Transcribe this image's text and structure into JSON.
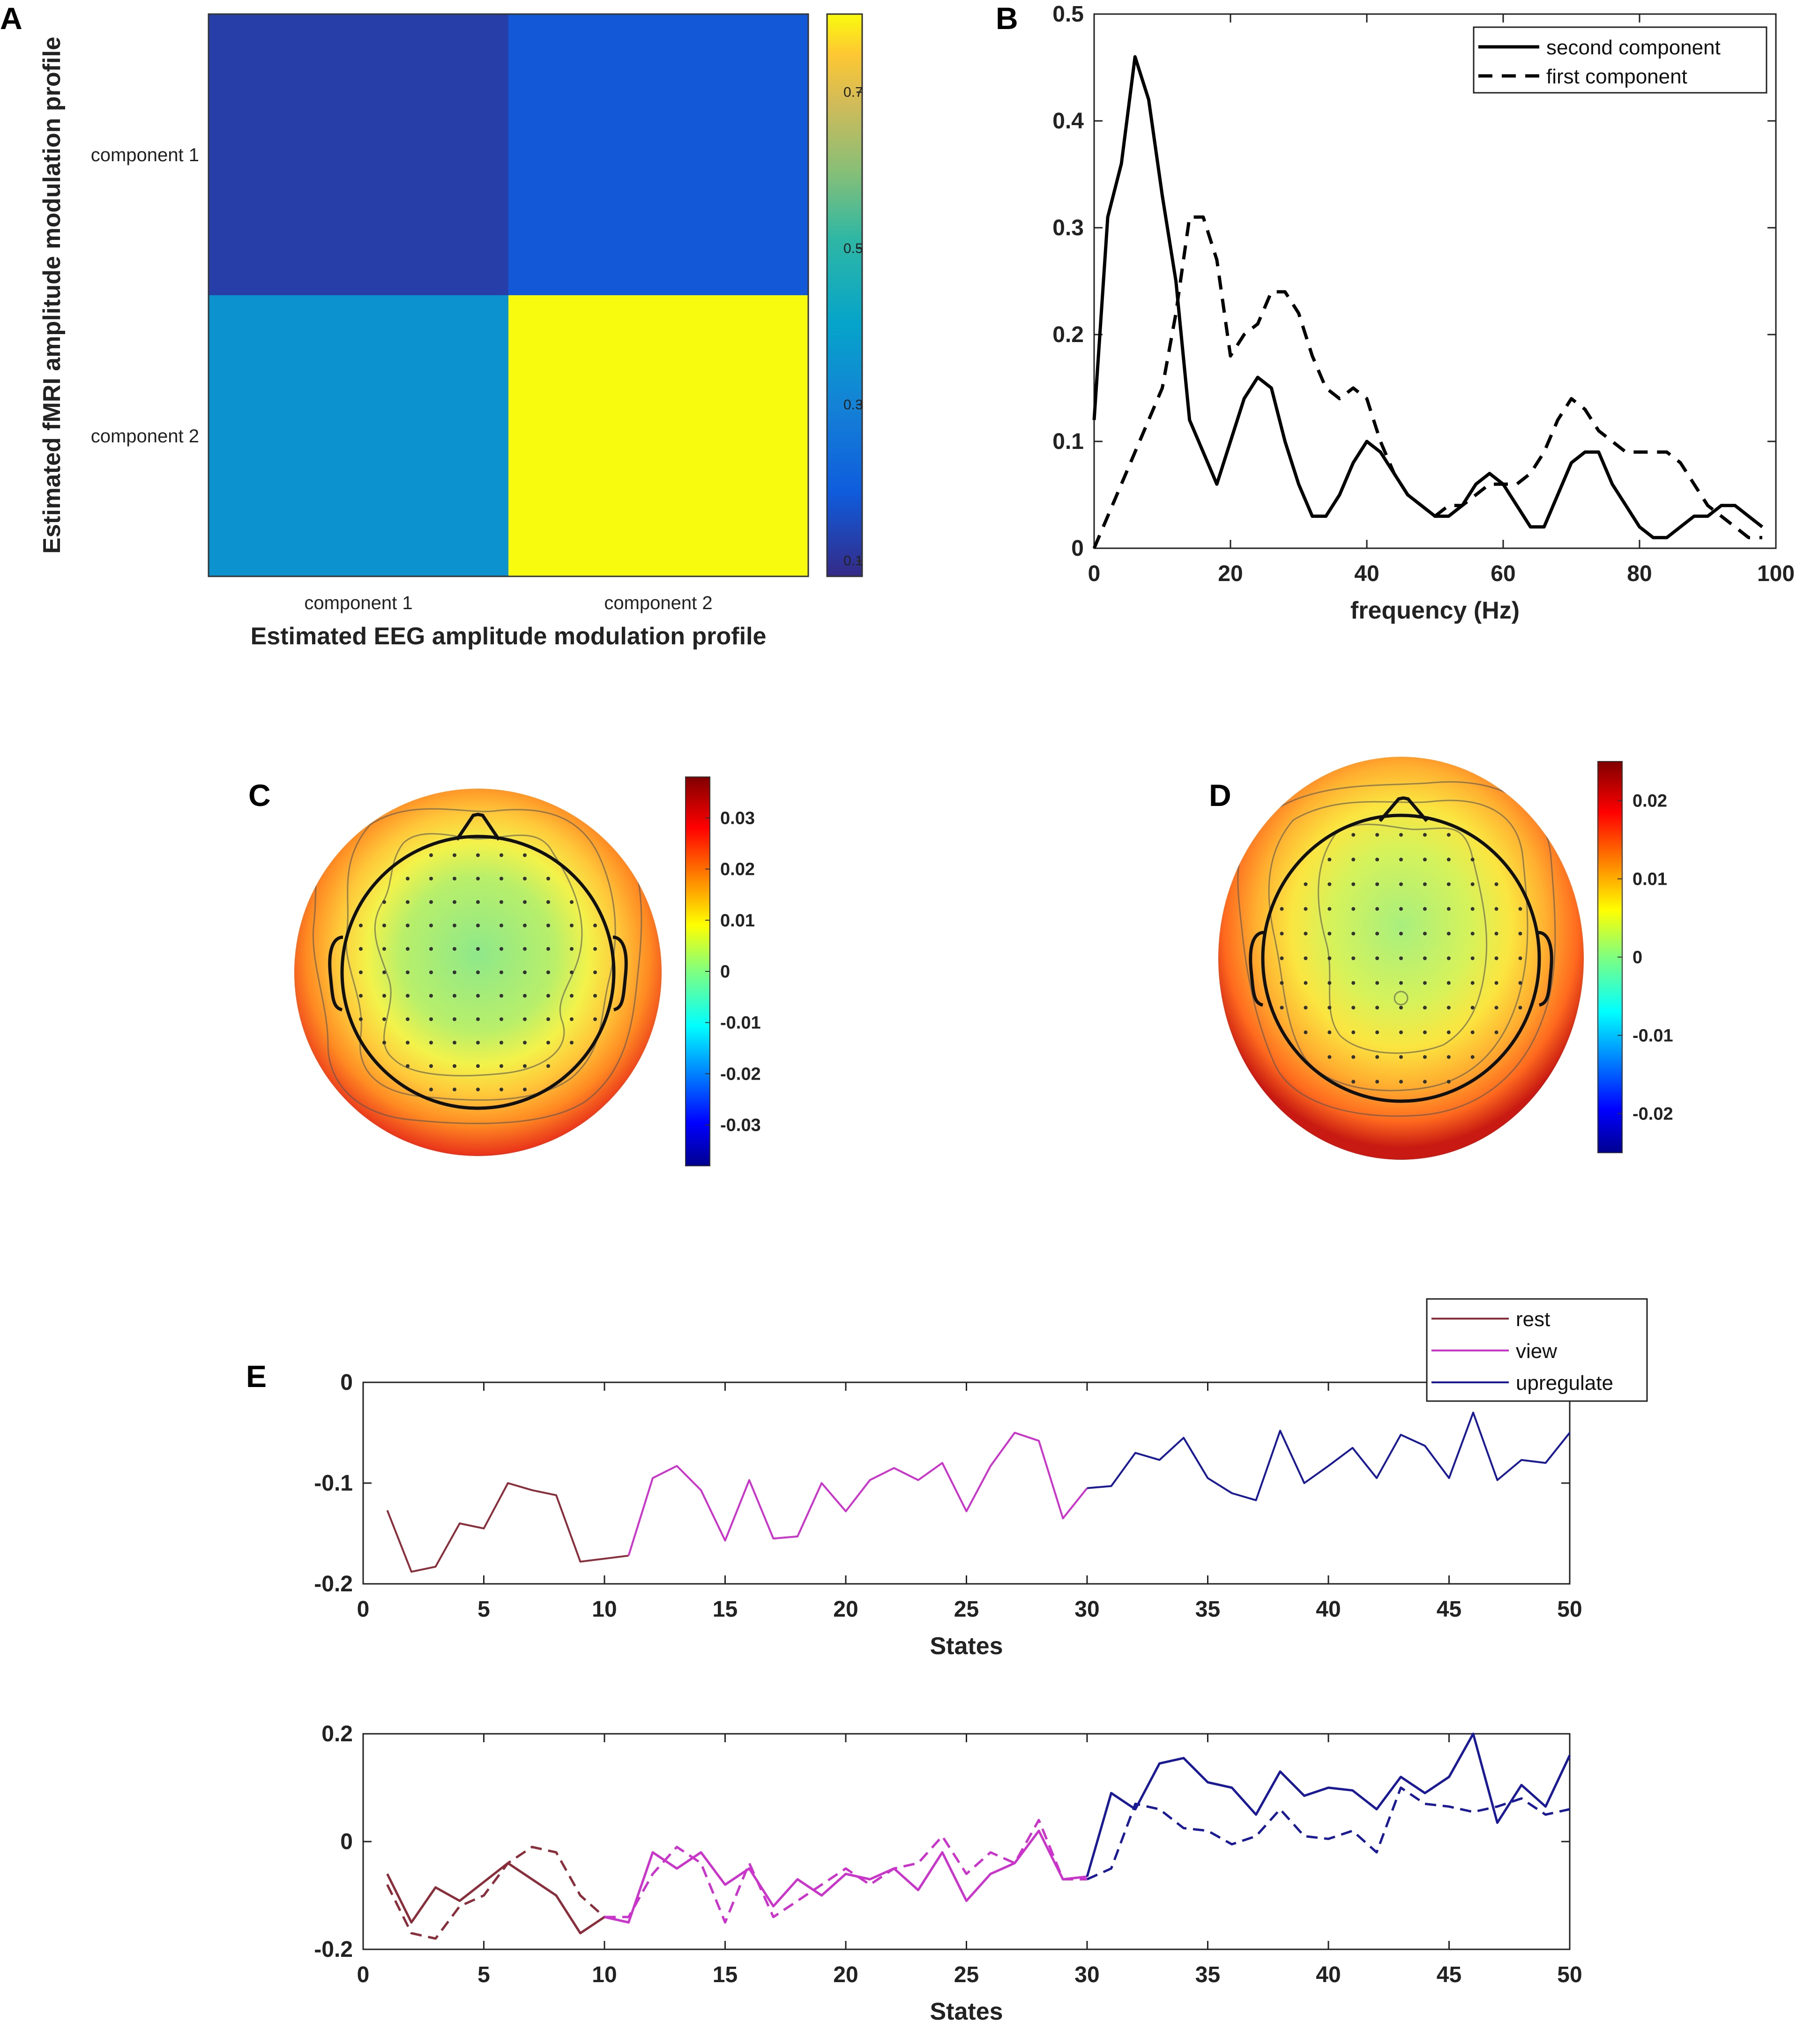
{
  "panels": {
    "A": "A",
    "B": "B",
    "C": "C",
    "D": "D",
    "E": "E"
  },
  "chart_data": [
    {
      "id": "A",
      "type": "heatmap",
      "title": "",
      "xlabel": "Estimated EEG amplitude modulation profile",
      "ylabel": "Estimated fMRI amplitude modulation profile",
      "x_categories": [
        "component 1",
        "component 2"
      ],
      "y_categories": [
        "component 1",
        "component 2"
      ],
      "values": [
        [
          0.12,
          0.18
        ],
        [
          0.35,
          0.8
        ]
      ],
      "colorbar": {
        "range": [
          0.08,
          0.8
        ],
        "ticks": [
          0.1,
          0.3,
          0.5,
          0.7
        ],
        "tick_labels": [
          "0.1",
          "0.3",
          "0.5",
          "0.7"
        ]
      }
    },
    {
      "id": "B",
      "type": "line",
      "xlabel": "frequency (Hz)",
      "ylabel": "",
      "xlim": [
        0,
        100
      ],
      "ylim": [
        0,
        0.5
      ],
      "xticks": [
        0,
        20,
        40,
        60,
        80,
        100
      ],
      "xtick_labels": [
        "0",
        "20",
        "40",
        "60",
        "80",
        "100"
      ],
      "yticks": [
        0,
        0.1,
        0.2,
        0.3,
        0.4,
        0.5
      ],
      "ytick_labels": [
        "0",
        "0.1",
        "0.2",
        "0.3",
        "0.4",
        "0.5"
      ],
      "legend_position": "top-right",
      "series": [
        {
          "name": "second component",
          "style": "solid",
          "x": [
            0,
            2,
            4,
            6,
            8,
            10,
            12,
            14,
            16,
            18,
            20,
            22,
            24,
            26,
            28,
            30,
            32,
            34,
            36,
            38,
            40,
            42,
            44,
            46,
            48,
            50,
            52,
            54,
            56,
            58,
            60,
            62,
            64,
            66,
            68,
            70,
            72,
            74,
            76,
            78,
            80,
            82,
            84,
            86,
            88,
            90,
            92,
            94,
            96,
            98
          ],
          "y": [
            0.12,
            0.31,
            0.36,
            0.46,
            0.42,
            0.33,
            0.25,
            0.12,
            0.09,
            0.06,
            0.1,
            0.14,
            0.16,
            0.15,
            0.1,
            0.06,
            0.03,
            0.03,
            0.05,
            0.08,
            0.1,
            0.09,
            0.07,
            0.05,
            0.04,
            0.03,
            0.03,
            0.04,
            0.06,
            0.07,
            0.06,
            0.04,
            0.02,
            0.02,
            0.05,
            0.08,
            0.09,
            0.09,
            0.06,
            0.04,
            0.02,
            0.01,
            0.01,
            0.02,
            0.03,
            0.03,
            0.04,
            0.04,
            0.03,
            0.02
          ]
        },
        {
          "name": "first component",
          "style": "dashed",
          "x": [
            0,
            2,
            4,
            6,
            8,
            10,
            12,
            14,
            16,
            18,
            20,
            22,
            24,
            26,
            28,
            30,
            32,
            34,
            36,
            38,
            40,
            42,
            44,
            46,
            48,
            50,
            52,
            54,
            56,
            58,
            60,
            62,
            64,
            66,
            68,
            70,
            72,
            74,
            76,
            78,
            80,
            82,
            84,
            86,
            88,
            90,
            92,
            94,
            96,
            98
          ],
          "y": [
            0.0,
            0.03,
            0.06,
            0.09,
            0.12,
            0.15,
            0.22,
            0.31,
            0.31,
            0.27,
            0.18,
            0.2,
            0.21,
            0.24,
            0.24,
            0.22,
            0.18,
            0.15,
            0.14,
            0.15,
            0.14,
            0.1,
            0.07,
            0.05,
            0.04,
            0.03,
            0.04,
            0.04,
            0.05,
            0.06,
            0.06,
            0.06,
            0.07,
            0.09,
            0.12,
            0.14,
            0.13,
            0.11,
            0.1,
            0.09,
            0.09,
            0.09,
            0.09,
            0.08,
            0.06,
            0.04,
            0.03,
            0.02,
            0.01,
            0.01
          ]
        }
      ]
    },
    {
      "id": "C",
      "type": "heatmap",
      "subtype": "topographic-scalp-map",
      "colorbar": {
        "range": [
          -0.038,
          0.038
        ],
        "ticks": [
          0.03,
          0.02,
          0.01,
          0,
          -0.01,
          -0.02,
          -0.03
        ],
        "tick_labels": [
          "0.03",
          "0.02",
          "0.01",
          "0",
          "-0.01",
          "-0.02",
          "-0.03"
        ]
      }
    },
    {
      "id": "D",
      "type": "heatmap",
      "subtype": "topographic-scalp-map",
      "colorbar": {
        "range": [
          -0.025,
          0.025
        ],
        "ticks": [
          0.02,
          0.01,
          0,
          -0.01,
          -0.02
        ],
        "tick_labels": [
          "0.02",
          "0.01",
          "0",
          "-0.01",
          "-0.02"
        ]
      }
    },
    {
      "id": "E1",
      "type": "line",
      "xlabel": "States",
      "xlim": [
        0,
        50
      ],
      "ylim": [
        -0.2,
        0
      ],
      "xticks": [
        0,
        5,
        10,
        15,
        20,
        25,
        30,
        35,
        40,
        45,
        50
      ],
      "xtick_labels": [
        "0",
        "5",
        "10",
        "15",
        "20",
        "25",
        "30",
        "35",
        "40",
        "45",
        "50"
      ],
      "yticks": [
        0,
        -0.1,
        -0.2
      ],
      "ytick_labels": [
        "0",
        "-0.1",
        "-0.2"
      ],
      "legend": [
        {
          "name": "rest",
          "color": "#8b2e3c"
        },
        {
          "name": "view",
          "color": "#cc33cc"
        },
        {
          "name": "upregulate",
          "color": "#1a1a99"
        }
      ],
      "legend_position": "top-right",
      "series": [
        {
          "name": "rest",
          "color": "#8b2e3c",
          "style": "solid",
          "x": [
            1,
            2,
            3,
            4,
            5,
            6,
            7,
            8,
            9,
            10,
            11
          ],
          "y": [
            -0.127,
            -0.188,
            -0.183,
            -0.14,
            -0.145,
            -0.1,
            -0.107,
            -0.112,
            -0.178,
            -0.175,
            -0.172
          ]
        },
        {
          "name": "view",
          "color": "#cc33cc",
          "style": "solid",
          "x": [
            11,
            12,
            13,
            14,
            15,
            16,
            17,
            18,
            19,
            20,
            21,
            22,
            23,
            24,
            25,
            26,
            27,
            28,
            29,
            30
          ],
          "y": [
            -0.172,
            -0.095,
            -0.083,
            -0.107,
            -0.157,
            -0.097,
            -0.155,
            -0.153,
            -0.1,
            -0.128,
            -0.097,
            -0.085,
            -0.097,
            -0.08,
            -0.128,
            -0.083,
            -0.05,
            -0.058,
            -0.135,
            -0.105
          ]
        },
        {
          "name": "upregulate",
          "color": "#1a1a99",
          "style": "solid",
          "x": [
            30,
            31,
            32,
            33,
            34,
            35,
            36,
            37,
            38,
            39,
            40,
            41,
            42,
            43,
            44,
            45,
            46,
            47,
            48,
            49,
            50
          ],
          "y": [
            -0.105,
            -0.103,
            -0.07,
            -0.077,
            -0.055,
            -0.095,
            -0.11,
            -0.117,
            -0.048,
            -0.1,
            -0.083,
            -0.065,
            -0.095,
            -0.052,
            -0.063,
            -0.095,
            -0.03,
            -0.097,
            -0.077,
            -0.08,
            -0.05
          ]
        }
      ]
    },
    {
      "id": "E2",
      "type": "line",
      "xlabel": "States",
      "xlim": [
        0,
        50
      ],
      "ylim": [
        -0.2,
        0.2
      ],
      "xticks": [
        0,
        5,
        10,
        15,
        20,
        25,
        30,
        35,
        40,
        45,
        50
      ],
      "xtick_labels": [
        "0",
        "5",
        "10",
        "15",
        "20",
        "25",
        "30",
        "35",
        "40",
        "45",
        "50"
      ],
      "yticks": [
        0.2,
        0,
        -0.2
      ],
      "ytick_labels": [
        "0.2",
        "0",
        "-0.2"
      ],
      "series": [
        {
          "name": "rest",
          "color": "#8b2e3c",
          "style": "solid",
          "x": [
            1,
            2,
            3,
            4,
            5,
            6,
            7,
            8,
            9,
            10
          ],
          "y": [
            -0.06,
            -0.15,
            -0.085,
            -0.11,
            -0.075,
            -0.04,
            -0.07,
            -0.1,
            -0.17,
            -0.14
          ]
        },
        {
          "name": "rest",
          "color": "#8b2e3c",
          "style": "dashed",
          "x": [
            1,
            2,
            3,
            4,
            5,
            6,
            7,
            8,
            9,
            10
          ],
          "y": [
            -0.08,
            -0.17,
            -0.18,
            -0.12,
            -0.1,
            -0.04,
            -0.01,
            -0.02,
            -0.1,
            -0.14
          ]
        },
        {
          "name": "view",
          "color": "#cc33cc",
          "style": "solid",
          "x": [
            10,
            11,
            12,
            13,
            14,
            15,
            16,
            17,
            18,
            19,
            20,
            21,
            22,
            23,
            24,
            25,
            26,
            27,
            28,
            29,
            30
          ],
          "y": [
            -0.14,
            -0.15,
            -0.02,
            -0.05,
            -0.02,
            -0.08,
            -0.05,
            -0.12,
            -0.07,
            -0.1,
            -0.06,
            -0.07,
            -0.05,
            -0.09,
            -0.02,
            -0.11,
            -0.06,
            -0.04,
            0.02,
            -0.07,
            -0.065
          ]
        },
        {
          "name": "view",
          "color": "#cc33cc",
          "style": "dashed",
          "x": [
            10,
            11,
            12,
            13,
            14,
            15,
            16,
            17,
            18,
            19,
            20,
            21,
            22,
            23,
            24,
            25,
            26,
            27,
            28,
            29,
            30
          ],
          "y": [
            -0.14,
            -0.14,
            -0.06,
            -0.01,
            -0.04,
            -0.15,
            -0.04,
            -0.14,
            -0.11,
            -0.08,
            -0.05,
            -0.08,
            -0.05,
            -0.04,
            0.01,
            -0.06,
            -0.02,
            -0.04,
            0.04,
            -0.07,
            -0.07
          ]
        },
        {
          "name": "upregulate",
          "color": "#1a1a99",
          "style": "solid",
          "x": [
            30,
            31,
            32,
            33,
            34,
            35,
            36,
            37,
            38,
            39,
            40,
            41,
            42,
            43,
            44,
            45,
            46,
            47,
            48,
            49,
            50
          ],
          "y": [
            -0.065,
            0.09,
            0.06,
            0.145,
            0.155,
            0.11,
            0.1,
            0.05,
            0.13,
            0.085,
            0.1,
            0.095,
            0.06,
            0.12,
            0.09,
            0.12,
            0.2,
            0.035,
            0.105,
            0.065,
            0.16
          ]
        },
        {
          "name": "upregulate",
          "color": "#1a1a99",
          "style": "dashed",
          "x": [
            30,
            31,
            32,
            33,
            34,
            35,
            36,
            37,
            38,
            39,
            40,
            41,
            42,
            43,
            44,
            45,
            46,
            47,
            48,
            49,
            50
          ],
          "y": [
            -0.07,
            -0.05,
            0.07,
            0.06,
            0.025,
            0.02,
            -0.005,
            0.01,
            0.06,
            0.01,
            0.005,
            0.02,
            -0.02,
            0.1,
            0.07,
            0.065,
            0.055,
            0.065,
            0.08,
            0.05,
            0.06
          ]
        }
      ]
    }
  ]
}
